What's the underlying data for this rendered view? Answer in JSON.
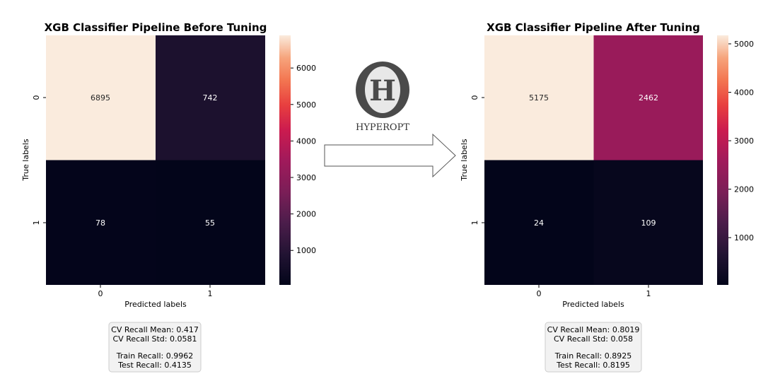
{
  "logo": {
    "letter": "H",
    "caption": "HYPEROPT"
  },
  "chart_data": [
    {
      "type": "heatmap",
      "title": "XGB Classifier Pipeline Before Tuning",
      "xlabel": "Predicted labels",
      "ylabel": "True labels",
      "x_categories": [
        "0",
        "1"
      ],
      "y_categories": [
        "0",
        "1"
      ],
      "matrix": [
        [
          6895,
          742
        ],
        [
          78,
          55
        ]
      ],
      "colorbar": {
        "ticks": [
          1000,
          2000,
          3000,
          4000,
          5000,
          6000
        ]
      },
      "colormap": "rocket",
      "metrics": {
        "cv_mean": "CV Recall Mean: 0.417",
        "cv_std": "CV Recall Std: 0.0581",
        "train": "Train Recall: 0.9962",
        "test": "Test Recall: 0.4135"
      }
    },
    {
      "type": "heatmap",
      "title": "XGB Classifier Pipeline After Tuning",
      "xlabel": "Predicted labels",
      "ylabel": "True labels",
      "x_categories": [
        "0",
        "1"
      ],
      "y_categories": [
        "0",
        "1"
      ],
      "matrix": [
        [
          5175,
          2462
        ],
        [
          24,
          109
        ]
      ],
      "colorbar": {
        "ticks": [
          1000,
          2000,
          3000,
          4000,
          5000
        ]
      },
      "colormap": "rocket",
      "metrics": {
        "cv_mean": "CV Recall Mean: 0.8019",
        "cv_std": "CV Recall Std: 0.058",
        "train": "Train Recall: 0.8925",
        "test": "Test Recall: 0.8195"
      }
    }
  ]
}
